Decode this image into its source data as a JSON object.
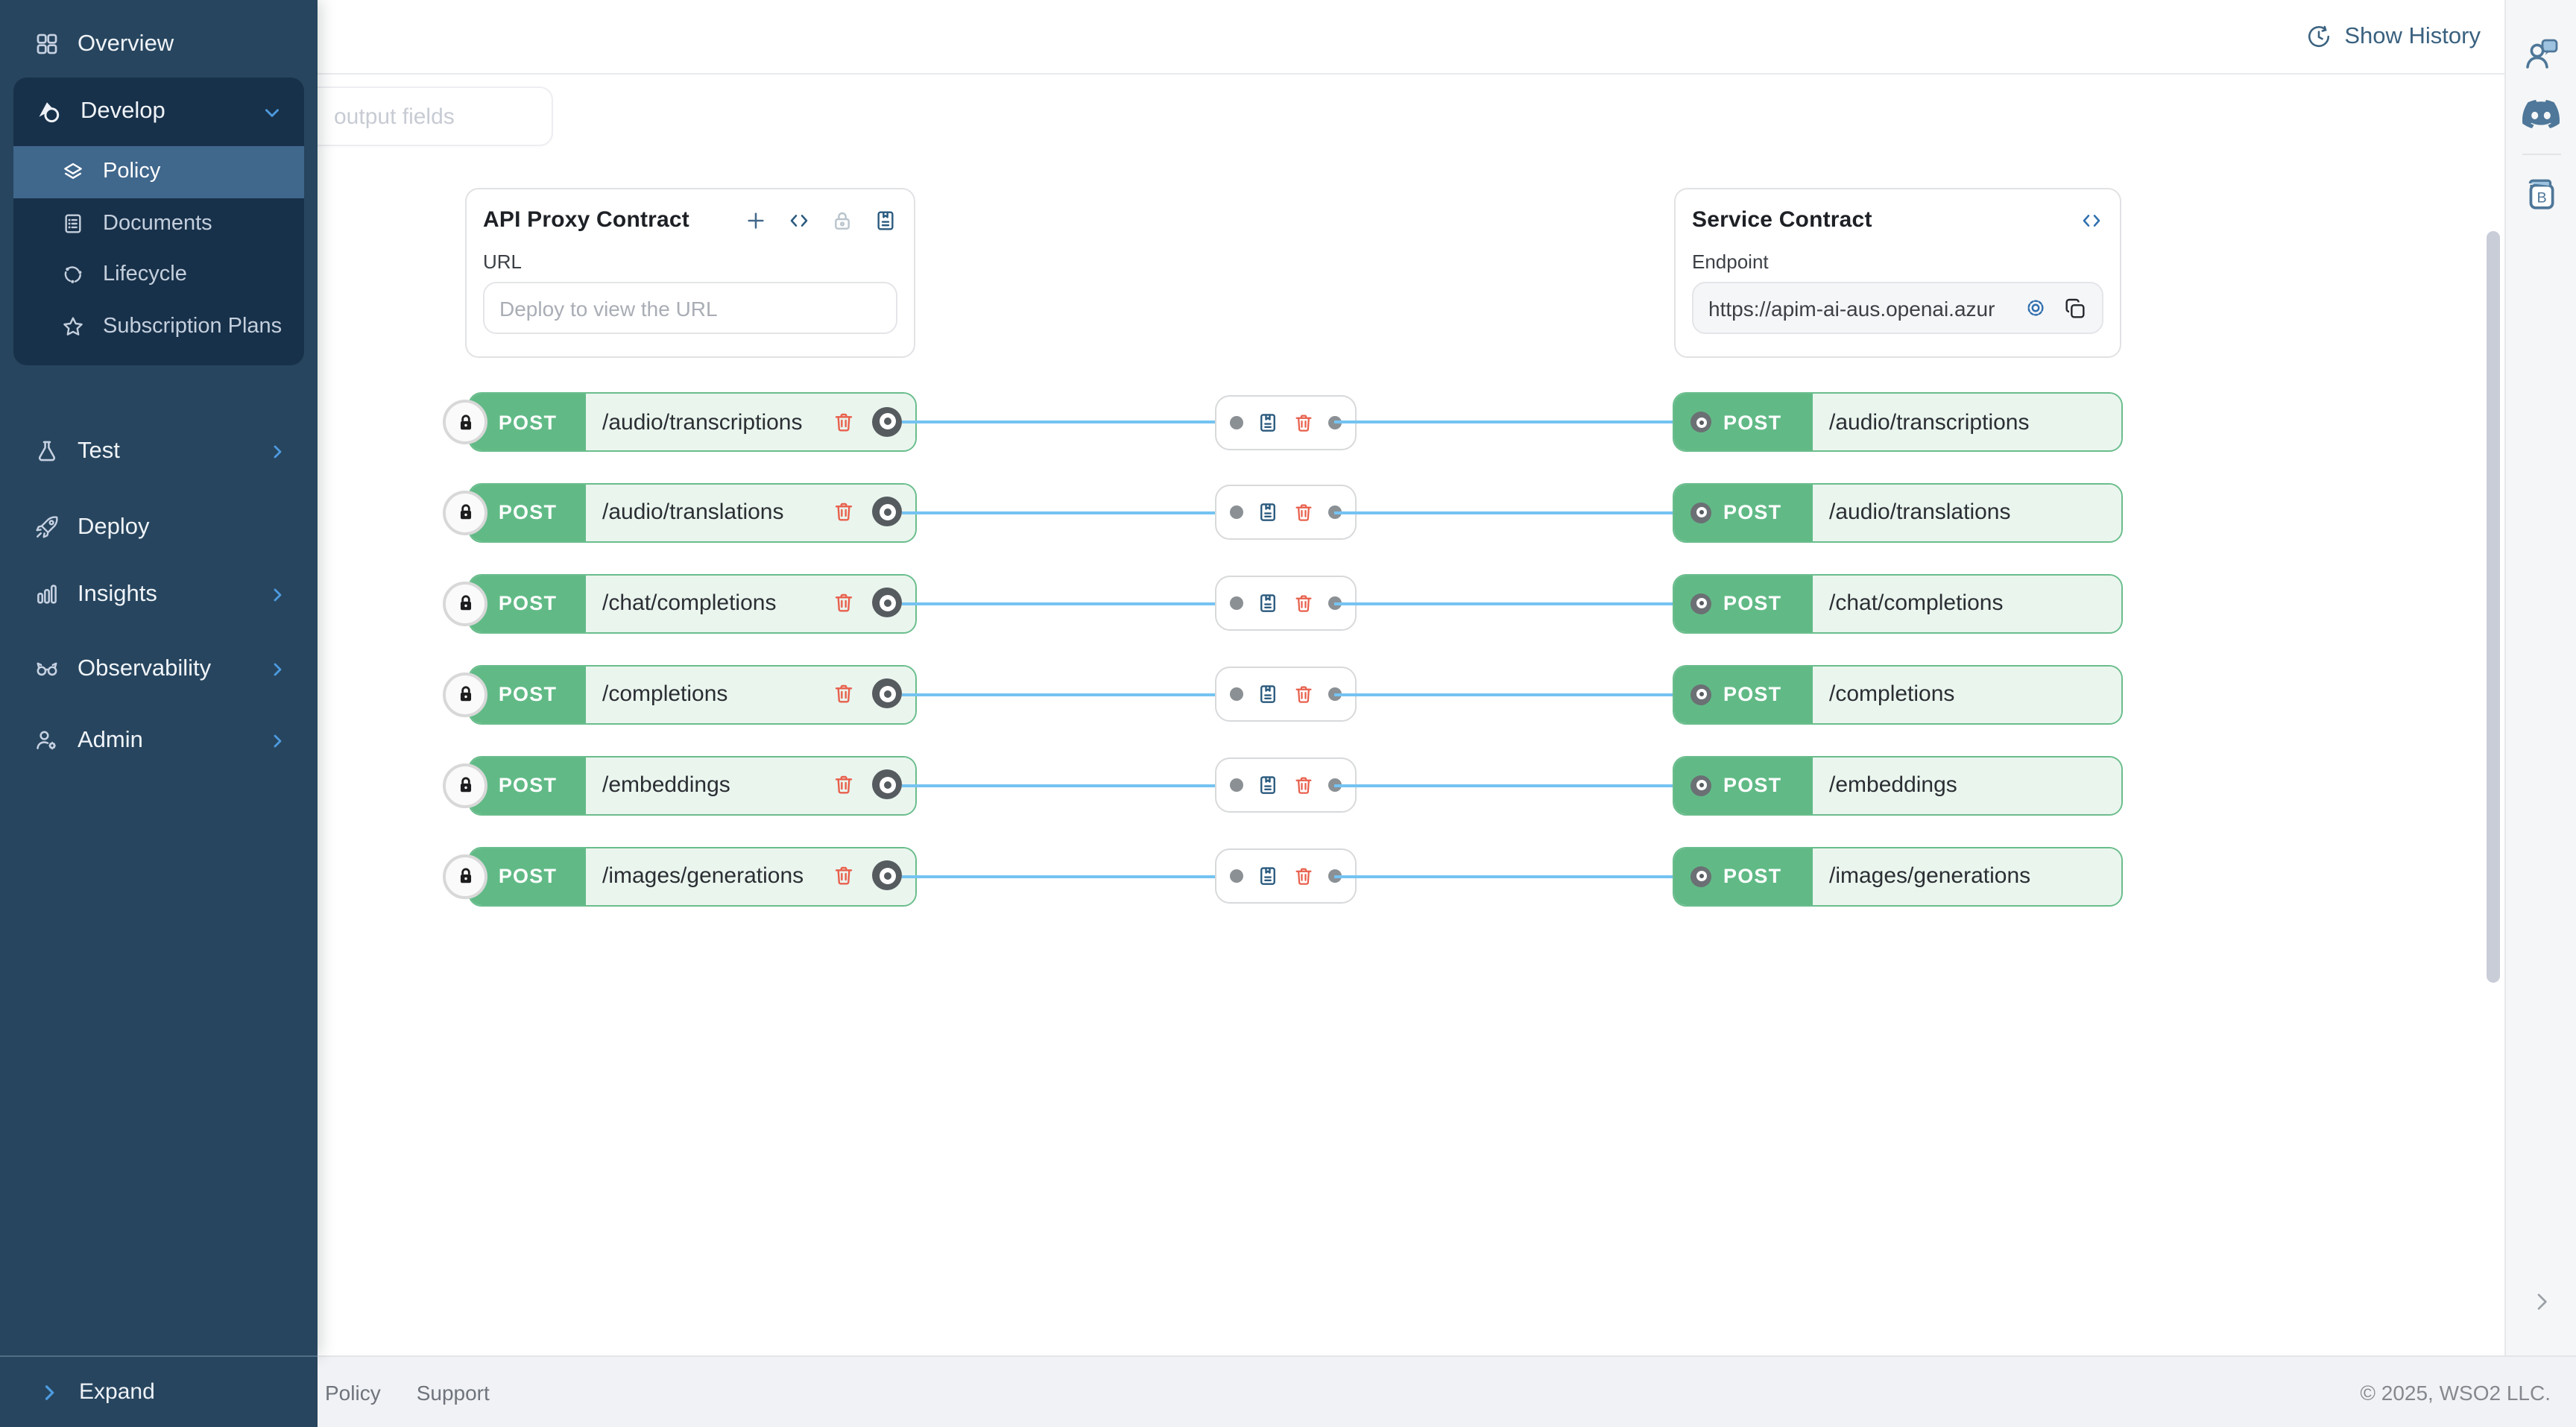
{
  "header": {
    "show_history_label": "Show History"
  },
  "sidebar": {
    "items": [
      {
        "label": "Overview",
        "icon": "grid-icon"
      },
      {
        "label": "Develop",
        "icon": "develop-icon",
        "expanded": true
      },
      {
        "label": "Test",
        "icon": "flask-icon",
        "has_chevron": true
      },
      {
        "label": "Deploy",
        "icon": "rocket-icon",
        "has_chevron": false
      },
      {
        "label": "Insights",
        "icon": "bar-chart-icon",
        "has_chevron": true
      },
      {
        "label": "Observability",
        "icon": "binoculars-icon",
        "has_chevron": true
      },
      {
        "label": "Admin",
        "icon": "admin-gear-icon",
        "has_chevron": true
      }
    ],
    "develop_children": [
      {
        "label": "Policy",
        "icon": "layers-icon",
        "active": true
      },
      {
        "label": "Documents",
        "icon": "document-icon",
        "active": false
      },
      {
        "label": "Lifecycle",
        "icon": "lifecycle-icon",
        "active": false
      },
      {
        "label": "Subscription Plans",
        "icon": "star-icon",
        "active": false
      }
    ],
    "expand_label": "Expand"
  },
  "canvas": {
    "output_fields_chip": "output fields",
    "proxy_card": {
      "title": "API Proxy Contract",
      "actions": [
        "add-resource-icon",
        "code-icon",
        "lock-icon",
        "policy-book-icon"
      ],
      "url_label": "URL",
      "url_placeholder": "Deploy to view the URL"
    },
    "service_card": {
      "title": "Service Contract",
      "actions": [
        "code-icon"
      ],
      "endpoint_label": "Endpoint",
      "endpoint_value": "https://apim-ai-aus.openai.azur",
      "field_actions": [
        "gear-icon",
        "copy-icon"
      ]
    },
    "rows": [
      {
        "method": "POST",
        "path": "/audio/transcriptions"
      },
      {
        "method": "POST",
        "path": "/audio/translations"
      },
      {
        "method": "POST",
        "path": "/chat/completions"
      },
      {
        "method": "POST",
        "path": "/completions"
      },
      {
        "method": "POST",
        "path": "/embeddings"
      },
      {
        "method": "POST",
        "path": "/images/generations"
      }
    ],
    "rail_book_letter": "B"
  },
  "footer": {
    "links": [
      "Policy",
      "Support"
    ],
    "copyright": "© 2025, WSO2 LLC."
  },
  "colors": {
    "sidebar_bg": "#27455E",
    "sidebar_panel_bg": "#18314A",
    "active_item_bg": "#40678C",
    "accent_blue": "#4D9BE0",
    "method_green": "#61BA86",
    "method_light_bg": "#EAF5EE",
    "wire_blue": "#74C3F2",
    "danger_red": "#E8604C",
    "slate_link": "#3A617F",
    "rail_icon": "#4E7799"
  }
}
